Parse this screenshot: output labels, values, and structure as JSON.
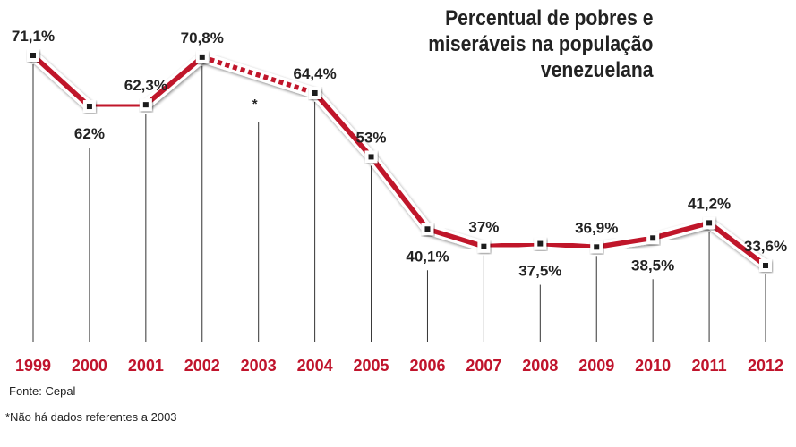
{
  "chart_data": {
    "type": "line",
    "title": "Percentual de pobres e miseráveis na população venezuelana",
    "title_lines": [
      "Percentual de pobres e",
      "miseráveis na população",
      "venezuelana"
    ],
    "xlabel": "",
    "ylabel": "",
    "grid": false,
    "x": [
      "1999",
      "2000",
      "2001",
      "2002",
      "2003",
      "2004",
      "2005",
      "2006",
      "2007",
      "2008",
      "2009",
      "2010",
      "2011",
      "2012"
    ],
    "series": [
      {
        "name": "Percentual de pobres e miseráveis",
        "values": [
          71.1,
          62.0,
          62.3,
          70.8,
          null,
          64.4,
          53.0,
          40.1,
          37.0,
          37.5,
          36.9,
          38.5,
          41.2,
          33.6
        ],
        "labels": [
          "71,1%",
          "62%",
          "62,3%",
          "70,8%",
          "*",
          "64,4%",
          "53%",
          "40,1%",
          "37%",
          "37,5%",
          "36,9%",
          "38,5%",
          "41,2%",
          "33,6%"
        ],
        "label_position": [
          "above",
          "below",
          "above",
          "above",
          "below",
          "above",
          "above",
          "below",
          "above",
          "below",
          "above",
          "below",
          "above",
          "above"
        ]
      }
    ],
    "missing_segment": {
      "from": "2002",
      "to": "2004",
      "style": "dashed"
    },
    "colors": {
      "line": "#c0142c",
      "year_labels": "#c0142c",
      "marker": "#1a1a1a",
      "text": "#222222"
    },
    "annotations": {
      "source": "Fonte: Cepal",
      "footnote": "*Não há dados referentes a 2003"
    }
  }
}
